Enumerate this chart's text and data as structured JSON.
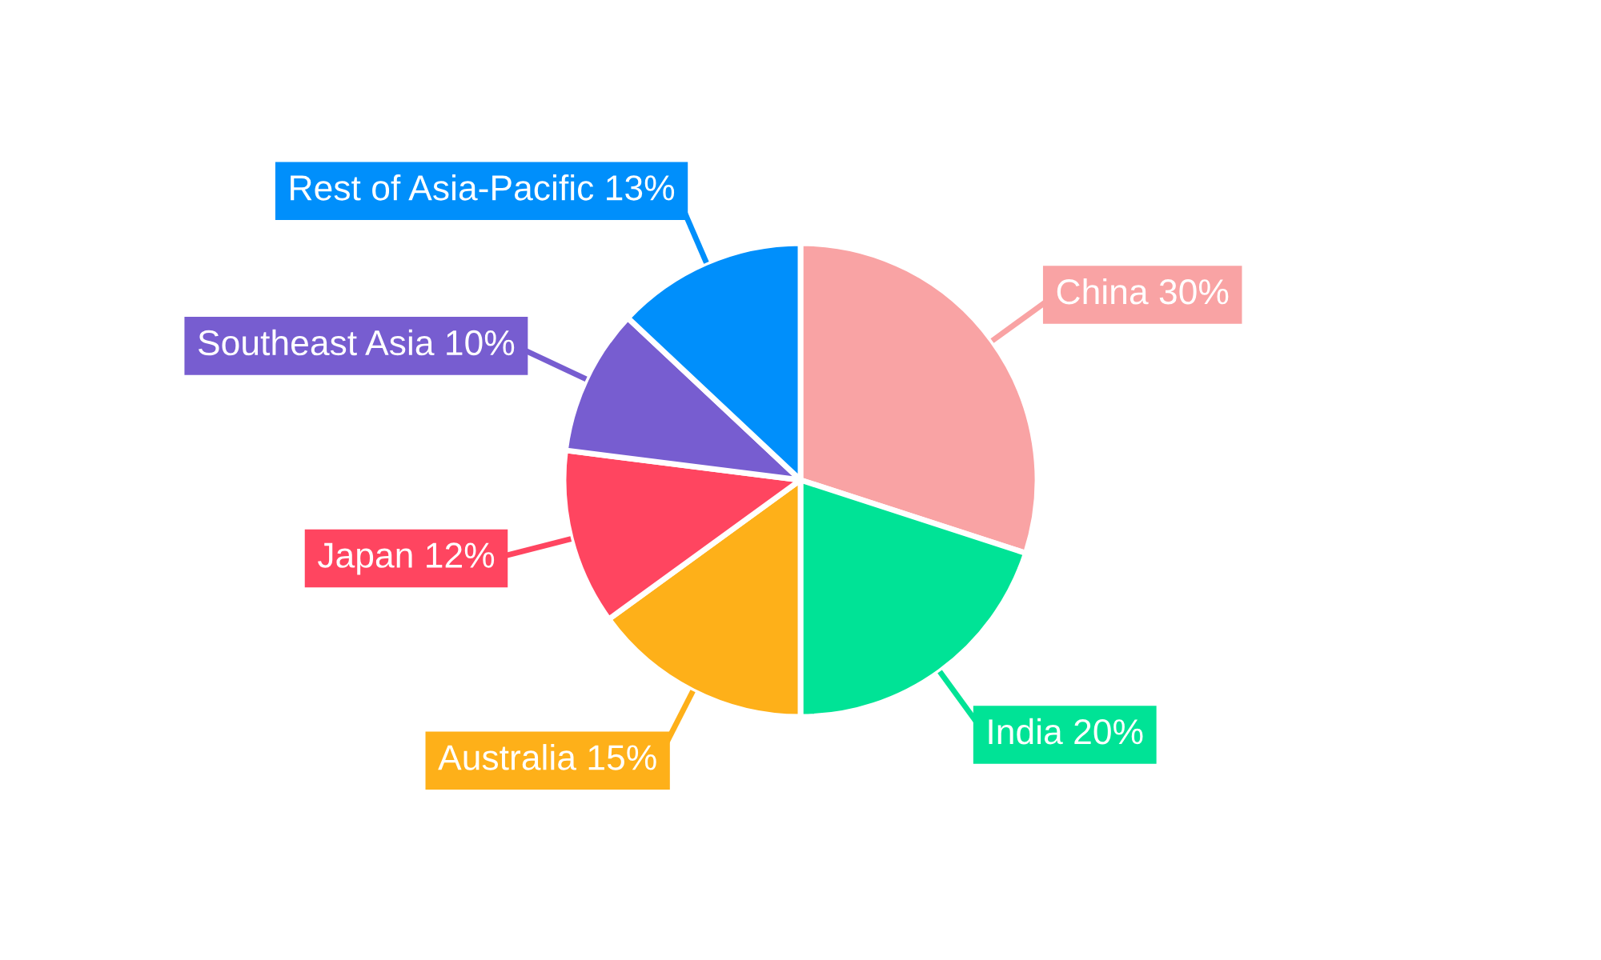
{
  "chart_data": {
    "type": "pie",
    "categories": [
      "China",
      "India",
      "Australia",
      "Japan",
      "Southeast Asia",
      "Rest of Asia-Pacific"
    ],
    "values": [
      30,
      20,
      15,
      12,
      10,
      13
    ],
    "value_labels": [
      "30%",
      "20%",
      "15%",
      "12%",
      "10%",
      "13%"
    ],
    "colors": [
      "#f9a3a4",
      "#00e396",
      "#feb019",
      "#ff4560",
      "#775dd0",
      "#008ffb"
    ]
  }
}
